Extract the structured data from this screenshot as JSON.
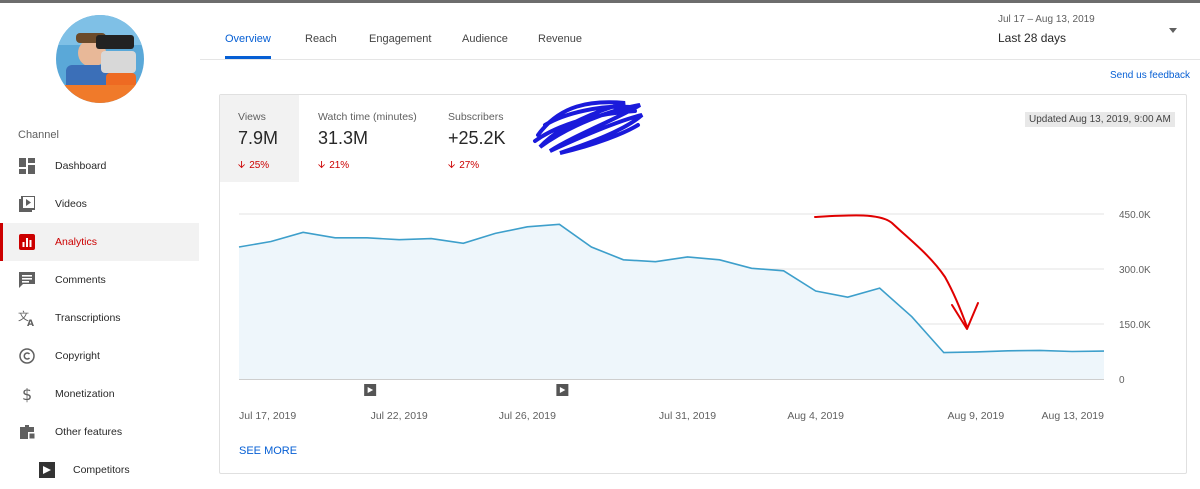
{
  "sidebar": {
    "channel_label": "Channel",
    "items": [
      {
        "label": "Dashboard",
        "icon": "dashboard-icon"
      },
      {
        "label": "Videos",
        "icon": "videos-icon"
      },
      {
        "label": "Analytics",
        "icon": "analytics-icon",
        "active": true
      },
      {
        "label": "Comments",
        "icon": "comments-icon"
      },
      {
        "label": "Transcriptions",
        "icon": "transcriptions-icon"
      },
      {
        "label": "Copyright",
        "icon": "copyright-icon"
      },
      {
        "label": "Monetization",
        "icon": "monetization-icon"
      },
      {
        "label": "Other features",
        "icon": "other-features-icon"
      },
      {
        "label": "Competitors",
        "icon": "competitors-icon"
      }
    ]
  },
  "tabs": [
    {
      "label": "Overview",
      "active": true
    },
    {
      "label": "Reach"
    },
    {
      "label": "Engagement"
    },
    {
      "label": "Audience"
    },
    {
      "label": "Revenue"
    }
  ],
  "date_range": {
    "range": "Jul 17 – Aug 13, 2019",
    "label": "Last 28 days"
  },
  "feedback_link": "Send us feedback",
  "metrics": [
    {
      "title": "Views",
      "value": "7.9M",
      "change": "25%"
    },
    {
      "title": "Watch time (minutes)",
      "value": "31.3M",
      "change": "21%"
    },
    {
      "title": "Subscribers",
      "value": "+25.2K",
      "change": "27%"
    }
  ],
  "updated": "Updated Aug 13, 2019, 9:00 AM",
  "see_more": "SEE MORE",
  "colors": {
    "accent": "#065fd4",
    "negative": "#cc0000",
    "line": "#3d9fcb",
    "fill": "#eef6fb"
  },
  "chart_data": {
    "type": "area",
    "x": [
      "Jul 17",
      "Jul 18",
      "Jul 19",
      "Jul 20",
      "Jul 21",
      "Jul 22",
      "Jul 23",
      "Jul 24",
      "Jul 25",
      "Jul 26",
      "Jul 27",
      "Jul 28",
      "Jul 29",
      "Jul 30",
      "Jul 31",
      "Aug 1",
      "Aug 2",
      "Aug 3",
      "Aug 4",
      "Aug 5",
      "Aug 6",
      "Aug 7",
      "Aug 8",
      "Aug 9",
      "Aug 10",
      "Aug 11",
      "Aug 12",
      "Aug 13"
    ],
    "values": [
      360000,
      375000,
      400000,
      385000,
      385000,
      380000,
      383000,
      370000,
      397000,
      415000,
      422000,
      360000,
      325000,
      320000,
      333000,
      325000,
      302000,
      295000,
      240000,
      223000,
      248000,
      170000,
      72000,
      74000,
      77000,
      78000,
      75000,
      76000
    ],
    "xticks": [
      "Jul 17, 2019",
      "Jul 22, 2019",
      "Jul 26, 2019",
      "Jul 31, 2019",
      "Aug 4, 2019",
      "Aug 9, 2019",
      "Aug 13, 2019"
    ],
    "xtick_index": [
      0,
      5,
      9,
      14,
      18,
      23,
      27
    ],
    "yticks": [
      "0",
      "150.0K",
      "300.0K",
      "450.0K"
    ],
    "ytick_values": [
      0,
      150000,
      300000,
      450000
    ],
    "ylim": [
      0,
      450000
    ],
    "video_markers_index": [
      4,
      10
    ],
    "grid": true
  }
}
